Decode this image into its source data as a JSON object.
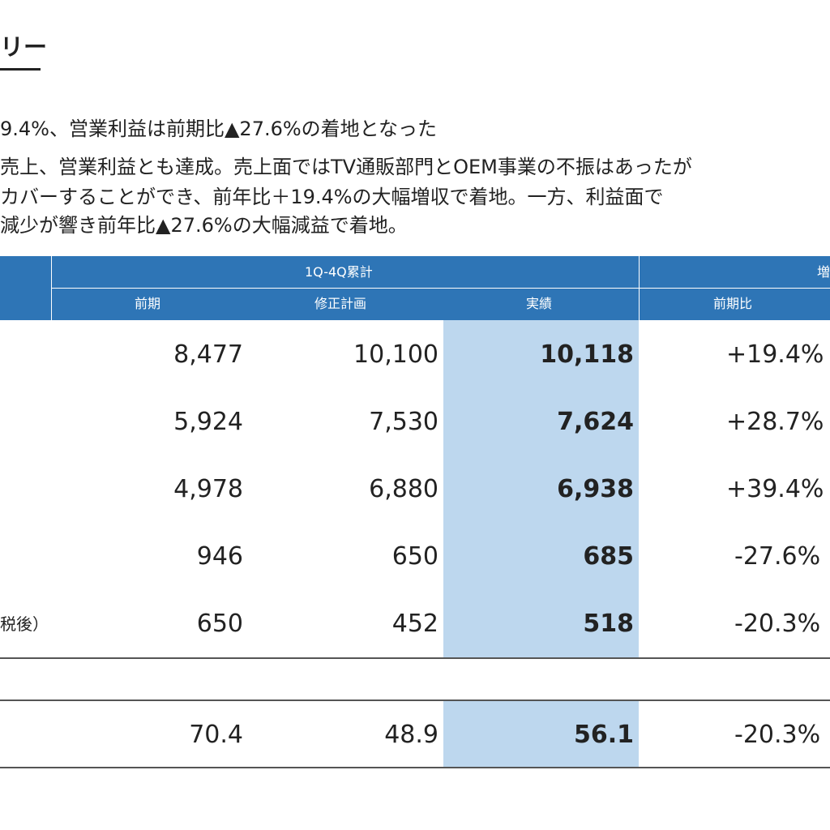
{
  "heading": "リー",
  "summary": {
    "line1": "9.4%、営業利益は前期比▲27.6%の着地となった",
    "line2": "売上、営業利益とも達成。売上面ではTV通販部門とOEM事業の不振はあったが",
    "line3": "カバーすることができ、前年比＋19.4%の大幅増収で着地。一方、利益面で",
    "line4": "減少が響き前年比▲27.6%の大幅減益で着地。"
  },
  "table": {
    "group_header": "1Q-4Q累計",
    "group_header_right": "増",
    "columns": [
      "前期",
      "修正計画",
      "実績",
      "前期比"
    ],
    "rows": [
      {
        "label": "",
        "prev": "8,477",
        "plan": "10,100",
        "actual": "10,118",
        "ratio": "+19.4%"
      },
      {
        "label": "",
        "prev": "5,924",
        "plan": "7,530",
        "actual": "7,624",
        "ratio": "+28.7%"
      },
      {
        "label": "",
        "prev": "4,978",
        "plan": "6,880",
        "actual": "6,938",
        "ratio": "+39.4%"
      },
      {
        "label": "",
        "prev": "946",
        "plan": "650",
        "actual": "685",
        "ratio": "-27.6%"
      },
      {
        "label": "税後）",
        "prev": "650",
        "plan": "452",
        "actual": "518",
        "ratio": "-20.3%"
      }
    ],
    "last_row": {
      "label": "",
      "prev": "70.4",
      "plan": "48.9",
      "actual": "56.1",
      "ratio": "-20.3%"
    }
  },
  "colors": {
    "header_blue": "#2e75b6",
    "highlight_blue": "#bdd7ee"
  }
}
